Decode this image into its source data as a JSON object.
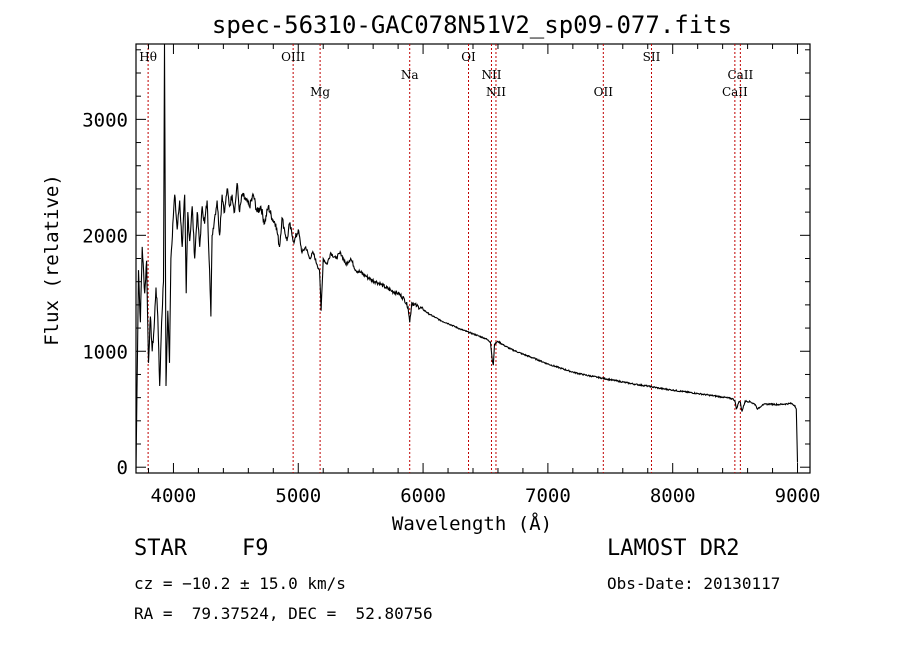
{
  "colors": {
    "spectrum": "#000000",
    "line_marker": "#c00000",
    "axis": "#000000"
  },
  "chart_data": {
    "type": "line",
    "title": "spec-56310-GAC078N51V2_sp09-077.fits",
    "xlabel": "Wavelength (Å)",
    "ylabel": "Flux (relative)",
    "xlim": [
      3700,
      9100
    ],
    "ylim": [
      -50,
      3650
    ],
    "x_ticks": [
      4000,
      5000,
      6000,
      7000,
      8000,
      9000
    ],
    "x_tick_labels": [
      "4000",
      "5000",
      "6000",
      "7000",
      "8000",
      "9000"
    ],
    "y_ticks": [
      0,
      1000,
      2000,
      3000
    ],
    "y_tick_labels": [
      "0",
      "1000",
      "2000",
      "3000"
    ],
    "series": [
      {
        "x": [
          3700,
          3720,
          3735,
          3750,
          3770,
          3785,
          3800,
          3815,
          3830,
          3845,
          3860,
          3875,
          3890,
          3905,
          3920,
          3928,
          3940,
          3955,
          3968,
          3980,
          3995,
          4010,
          4030,
          4050,
          4070,
          4090,
          4102,
          4115,
          4130,
          4150,
          4170,
          4190,
          4210,
          4230,
          4250,
          4270,
          4290,
          4300,
          4310,
          4330,
          4350,
          4370,
          4390,
          4410,
          4430,
          4450,
          4470,
          4490,
          4510,
          4530,
          4550,
          4580,
          4610,
          4640,
          4670,
          4700,
          4730,
          4760,
          4790,
          4820,
          4850,
          4870,
          4890,
          4910,
          4930,
          4950,
          4970,
          5000,
          5030,
          5060,
          5090,
          5120,
          5150,
          5170,
          5183,
          5200,
          5230,
          5260,
          5300,
          5340,
          5380,
          5420,
          5460,
          5500,
          5540,
          5580,
          5620,
          5660,
          5700,
          5750,
          5800,
          5850,
          5880,
          5893,
          5910,
          5950,
          6000,
          6050,
          6100,
          6150,
          6200,
          6250,
          6300,
          6350,
          6400,
          6450,
          6500,
          6540,
          6555,
          6563,
          6572,
          6600,
          6650,
          6700,
          6800,
          6900,
          7000,
          7100,
          7200,
          7300,
          7400,
          7500,
          7600,
          7700,
          7800,
          7900,
          8000,
          8100,
          8200,
          8300,
          8400,
          8480,
          8498,
          8510,
          8530,
          8542,
          8555,
          8580,
          8620,
          8662,
          8680,
          8720,
          8780,
          8840,
          8900,
          8950,
          8980,
          8990,
          9000
        ],
        "y": [
          -20,
          1700,
          1250,
          1900,
          1500,
          1780,
          900,
          1300,
          1000,
          1200,
          1550,
          1300,
          700,
          1250,
          1600,
          3650,
          700,
          1350,
          900,
          1800,
          2100,
          2350,
          2050,
          2300,
          1900,
          2350,
          1500,
          2200,
          1950,
          2250,
          1800,
          2200,
          1900,
          2250,
          2100,
          2300,
          1700,
          1300,
          2000,
          2150,
          2300,
          2000,
          2350,
          2200,
          2400,
          2250,
          2350,
          2200,
          2450,
          2200,
          2350,
          2300,
          2250,
          2350,
          2200,
          2250,
          2100,
          2250,
          2150,
          2100,
          1900,
          2150,
          2050,
          1950,
          2100,
          2000,
          1950,
          2050,
          1850,
          1900,
          1800,
          1850,
          1750,
          1700,
          1350,
          1800,
          1750,
          1850,
          1800,
          1850,
          1750,
          1800,
          1700,
          1680,
          1650,
          1620,
          1600,
          1580,
          1550,
          1520,
          1500,
          1450,
          1380,
          1250,
          1420,
          1390,
          1360,
          1320,
          1290,
          1260,
          1240,
          1215,
          1190,
          1170,
          1150,
          1130,
          1110,
          1080,
          920,
          880,
          1060,
          1085,
          1050,
          1020,
          975,
          935,
          890,
          855,
          820,
          795,
          775,
          755,
          735,
          715,
          700,
          680,
          665,
          650,
          635,
          620,
          605,
          590,
          575,
          500,
          565,
          560,
          480,
          570,
          565,
          540,
          500,
          540,
          545,
          540,
          545,
          550,
          530,
          500,
          40
        ]
      }
    ],
    "line_markers": [
      {
        "label": "Hθ",
        "x": 3797,
        "row": 1
      },
      {
        "label": "OIII",
        "x": 4959,
        "row": 1
      },
      {
        "label": "Mg",
        "x": 5175,
        "row": 3
      },
      {
        "label": "Na",
        "x": 5893,
        "row": 2
      },
      {
        "label": "OI",
        "x": 6364,
        "row": 1
      },
      {
        "label": "NII",
        "x": 6548,
        "row": 2
      },
      {
        "label": "NII",
        "x": 6584,
        "row": 3
      },
      {
        "label": "OII",
        "x": 7444,
        "row": 3
      },
      {
        "label": "SII",
        "x": 7830,
        "row": 1
      },
      {
        "label": "CaII",
        "x": 8498,
        "row": 3
      },
      {
        "label": "CaII",
        "x": 8542,
        "row": 2
      }
    ]
  },
  "info": {
    "object_class": "STAR",
    "subclass": "F9",
    "survey": "LAMOST DR2",
    "redshift_text": "cz = −10.2 ± 15.0 km/s",
    "obs_date_text": "Obs-Date: 20130117",
    "coords_text": "RA =  79.37524, DEC =  52.80756"
  }
}
